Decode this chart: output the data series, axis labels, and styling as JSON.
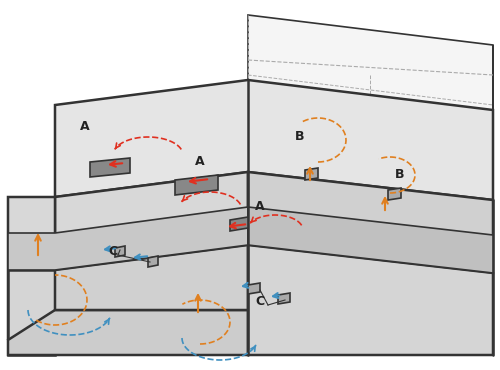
{
  "background_color": "#ffffff",
  "building_edge_color": "#333333",
  "building_fill_top": "#e8e8e8",
  "building_fill_front": "#d5d5d5",
  "building_fill_side": "#c8c8c8",
  "grey_zone_fill": "#d0d0d0",
  "dashed_gray": "#aaaaaa",
  "red_arrow_color": "#e03020",
  "orange_arrow_color": "#e08020",
  "blue_arrow_color": "#4090c0",
  "label_A": "A",
  "label_B": "B",
  "label_C": "C",
  "lw": 1.2,
  "lw_thick": 1.8
}
